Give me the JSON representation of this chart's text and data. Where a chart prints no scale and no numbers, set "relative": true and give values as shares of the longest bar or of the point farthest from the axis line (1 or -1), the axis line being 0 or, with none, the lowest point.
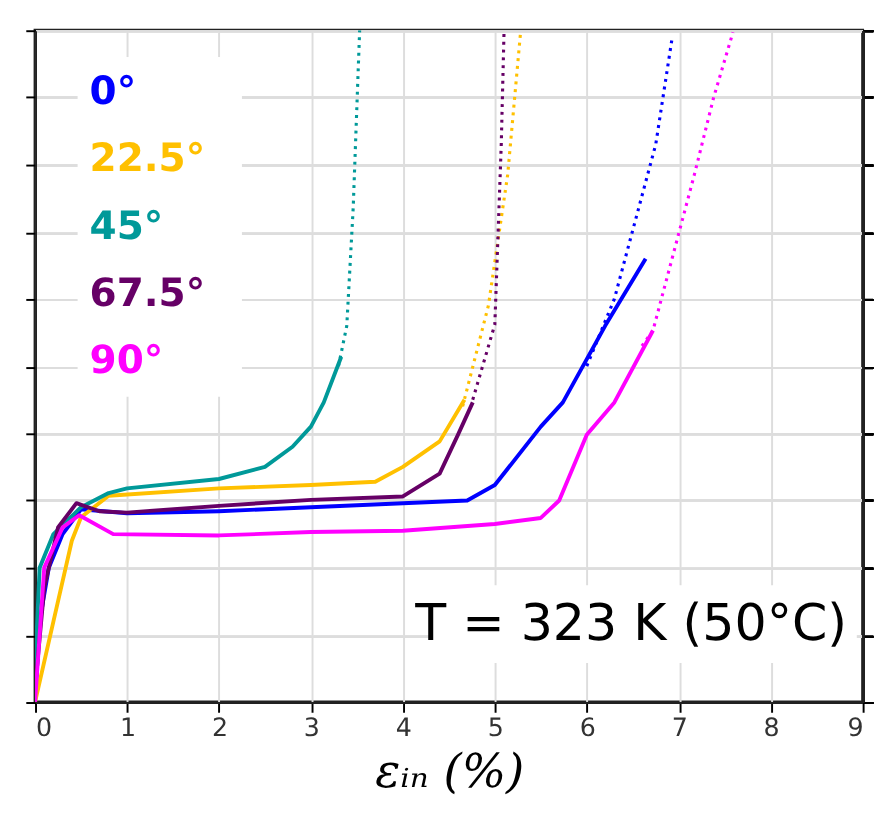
{
  "chart_data": {
    "type": "line",
    "relative": true,
    "xlabel": "εᵢₙ (%)",
    "xlim": [
      0,
      9
    ],
    "xticks": [
      0,
      1,
      2,
      3,
      4,
      5,
      6,
      7,
      8,
      9
    ],
    "grid": true,
    "legend": "top left",
    "tick_labels": "x",
    "marker": "none",
    "annotations": [
      "T = 323 K (50°C)"
    ],
    "series": [
      {
        "name": "0°",
        "color": "#0000ff",
        "line_style": "solid",
        "x": [
          0,
          0.05,
          0.15,
          0.3,
          0.5,
          1,
          2,
          3,
          4,
          4.7,
          5,
          5.5,
          5.74,
          6.2,
          6.64
        ],
        "values": [
          0,
          0.12,
          0.2,
          0.25,
          0.287,
          0.281,
          0.284,
          0.29,
          0.296,
          0.3,
          0.323,
          0.41,
          0.446,
          0.56,
          0.66
        ]
      },
      {
        "name": "22.5°",
        "color": "#ffc000",
        "line_style": "solid",
        "x": [
          0,
          0.2,
          0.4,
          0.5,
          0.8,
          2,
          3,
          3.7,
          4.0,
          4.4,
          4.67
        ],
        "values": [
          0,
          0.12,
          0.24,
          0.275,
          0.307,
          0.318,
          0.323,
          0.328,
          0.35,
          0.388,
          0.45
        ]
      },
      {
        "name": "45°",
        "color": "#009999",
        "line_style": "solid",
        "x": [
          0,
          0.05,
          0.2,
          0.5,
          0.8,
          1,
          2,
          2.5,
          2.8,
          3.0,
          3.14,
          3.33
        ],
        "values": [
          0.05,
          0.2,
          0.25,
          0.29,
          0.311,
          0.318,
          0.332,
          0.35,
          0.38,
          0.41,
          0.446,
          0.514
        ]
      },
      {
        "name": "67.5°",
        "color": "#660066",
        "line_style": "solid",
        "x": [
          0,
          0.1,
          0.25,
          0.45,
          0.7,
          1,
          2,
          3,
          4,
          4.4,
          4.6,
          4.76
        ],
        "values": [
          0.02,
          0.17,
          0.26,
          0.296,
          0.284,
          0.282,
          0.292,
          0.301,
          0.306,
          0.34,
          0.398,
          0.446
        ]
      },
      {
        "name": "90°",
        "color": "#ff00ff",
        "line_style": "solid",
        "x": [
          0,
          0.1,
          0.3,
          0.48,
          0.85,
          2,
          3,
          4,
          5,
          5.5,
          5.7,
          6.0,
          6.3,
          6.72
        ],
        "values": [
          0,
          0.2,
          0.26,
          0.278,
          0.25,
          0.248,
          0.253,
          0.255,
          0.265,
          0.274,
          0.3,
          0.398,
          0.446,
          0.553
        ]
      },
      {
        "color": "#0000ff",
        "line_style": "dotted",
        "x": [
          6.0,
          6.3,
          6.47,
          6.75,
          6.93
        ],
        "values": [
          0.5,
          0.6,
          0.687,
          0.83,
          0.99
        ]
      },
      {
        "color": "#ffc000",
        "line_style": "dotted",
        "x": [
          4.65,
          4.93,
          5.14,
          5.28
        ],
        "values": [
          0.44,
          0.59,
          0.785,
          0.997
        ]
      },
      {
        "color": "#009999",
        "line_style": "dotted",
        "x": [
          3.3,
          3.39,
          3.46,
          3.53
        ],
        "values": [
          0.5,
          0.56,
          0.736,
          1.0
        ]
      },
      {
        "color": "#660066",
        "line_style": "dotted",
        "x": [
          4.76,
          5.0,
          5.07,
          5.1
        ],
        "values": [
          0.45,
          0.562,
          0.83,
          0.997
        ]
      },
      {
        "color": "#ff00ff",
        "line_style": "dotted",
        "x": [
          6.6,
          6.72,
          7.17,
          7.38,
          7.59
        ],
        "values": [
          0.53,
          0.553,
          0.785,
          0.9,
          0.997
        ]
      }
    ]
  }
}
